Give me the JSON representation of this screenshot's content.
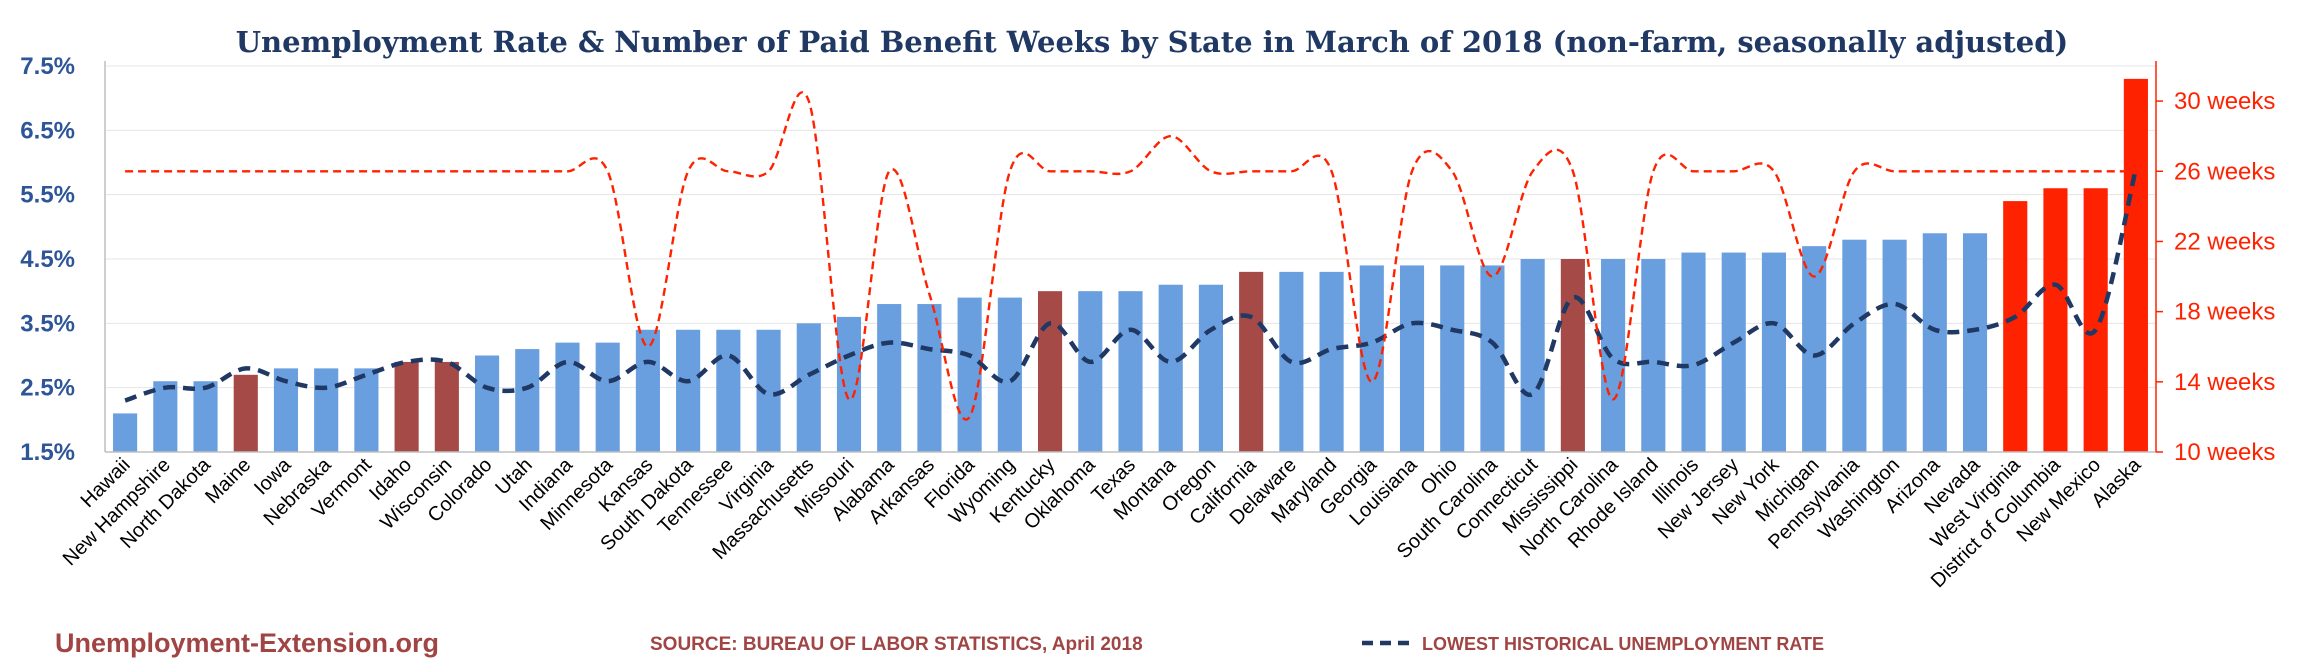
{
  "chart_data": {
    "type": "bar",
    "title": "Unemployment Rate & Number of Paid Benefit Weeks by State in March of 2018 (non-farm, seasonally adjusted)",
    "categories": [
      "Hawaii",
      "New Hampshire",
      "North Dakota",
      "Maine",
      "Iowa",
      "Nebraska",
      "Vermont",
      "Idaho",
      "Wisconsin",
      "Colorado",
      "Utah",
      "Indiana",
      "Minnesota",
      "Kansas",
      "South Dakota",
      "Tennessee",
      "Virginia",
      "Massachusetts",
      "Missouri",
      "Alabama",
      "Arkansas",
      "Florida",
      "Wyoming",
      "Kentucky",
      "Oklahoma",
      "Texas",
      "Montana",
      "Oregon",
      "California",
      "Delaware",
      "Maryland",
      "Georgia",
      "Louisiana",
      "Ohio",
      "South Carolina",
      "Connecticut",
      "Mississippi",
      "North Carolina",
      "Rhode Island",
      "Illinois",
      "New Jersey",
      "New York",
      "Michigan",
      "Pennsylvania",
      "Washington",
      "Arizona",
      "Nevada",
      "West Virginia",
      "District of Columbia",
      "New Mexico",
      "Alaska"
    ],
    "series": [
      {
        "values": [
          2.1,
          2.6,
          2.6,
          2.7,
          2.8,
          2.8,
          2.8,
          2.9,
          2.9,
          3.0,
          3.1,
          3.2,
          3.2,
          3.4,
          3.4,
          3.4,
          3.4,
          3.5,
          3.6,
          3.8,
          3.8,
          3.9,
          3.9,
          4.0,
          4.0,
          4.0,
          4.1,
          4.1,
          4.3,
          4.3,
          4.3,
          4.4,
          4.4,
          4.4,
          4.4,
          4.5,
          4.5,
          4.5,
          4.5,
          4.6,
          4.6,
          4.6,
          4.7,
          4.8,
          4.8,
          4.9,
          4.9,
          5.4,
          5.6,
          5.6,
          7.3
        ],
        "colors": [
          "#6a9fdf",
          "#6a9fdf",
          "#6a9fdf",
          "#a54a46",
          "#6a9fdf",
          "#6a9fdf",
          "#6a9fdf",
          "#a54a46",
          "#a54a46",
          "#6a9fdf",
          "#6a9fdf",
          "#6a9fdf",
          "#6a9fdf",
          "#6a9fdf",
          "#6a9fdf",
          "#6a9fdf",
          "#6a9fdf",
          "#6a9fdf",
          "#6a9fdf",
          "#6a9fdf",
          "#6a9fdf",
          "#6a9fdf",
          "#6a9fdf",
          "#a54a46",
          "#6a9fdf",
          "#6a9fdf",
          "#6a9fdf",
          "#6a9fdf",
          "#a54a46",
          "#6a9fdf",
          "#6a9fdf",
          "#6a9fdf",
          "#6a9fdf",
          "#6a9fdf",
          "#6a9fdf",
          "#6a9fdf",
          "#a54a46",
          "#6a9fdf",
          "#6a9fdf",
          "#6a9fdf",
          "#6a9fdf",
          "#6a9fdf",
          "#6a9fdf",
          "#6a9fdf",
          "#6a9fdf",
          "#6a9fdf",
          "#6a9fdf",
          "#ff2200",
          "#ff2200",
          "#ff2200",
          "#ff2200"
        ]
      },
      {
        "name": "LOWEST HISTORICAL UNEMPLOYMENT RATE",
        "style": "dashed",
        "color": "#1f3864",
        "values": [
          2.3,
          2.5,
          2.5,
          2.8,
          2.6,
          2.5,
          2.7,
          2.9,
          2.9,
          2.5,
          2.5,
          2.9,
          2.6,
          2.9,
          2.6,
          3.0,
          2.4,
          2.7,
          3.0,
          3.2,
          3.1,
          3.0,
          2.6,
          3.5,
          2.9,
          3.4,
          2.9,
          3.4,
          3.6,
          2.9,
          3.1,
          3.2,
          3.5,
          3.4,
          3.2,
          2.4,
          3.9,
          2.95,
          2.9,
          2.85,
          3.2,
          3.5,
          3.0,
          3.5,
          3.8,
          3.4,
          3.4,
          3.6,
          4.1,
          3.4,
          5.9
        ]
      },
      {
        "name": "paid benefit weeks",
        "axis": "right",
        "style": "dashed",
        "color": "#ff2200",
        "values": [
          26,
          26,
          26,
          26,
          26,
          26,
          26,
          26,
          26,
          26,
          26,
          26,
          26,
          16,
          26,
          26,
          26,
          30,
          13,
          26,
          19,
          12,
          26,
          26,
          26,
          26,
          28,
          26,
          26,
          26,
          26,
          14,
          26,
          26,
          20,
          26,
          26,
          13,
          26,
          26,
          26,
          26,
          20,
          26,
          26,
          26,
          26,
          26,
          26,
          26,
          26
        ]
      }
    ],
    "ylim": [
      1.5,
      7.5
    ],
    "yticks": [
      "1.5%",
      "2.5%",
      "3.5%",
      "4.5%",
      "5.5%",
      "6.5%",
      "7.5%"
    ],
    "y2lim": [
      10,
      32
    ],
    "y2ticks": [
      "10 weeks",
      "14 weeks",
      "18 weeks",
      "22 weeks",
      "26 weeks",
      "30 weeks"
    ],
    "grid": true
  },
  "footer": {
    "site": "Unemployment-Extension.org",
    "source": "SOURCE: BUREAU OF LABOR STATISTICS, April 2018",
    "legend_label": "LOWEST HISTORICAL UNEMPLOYMENT RATE"
  }
}
